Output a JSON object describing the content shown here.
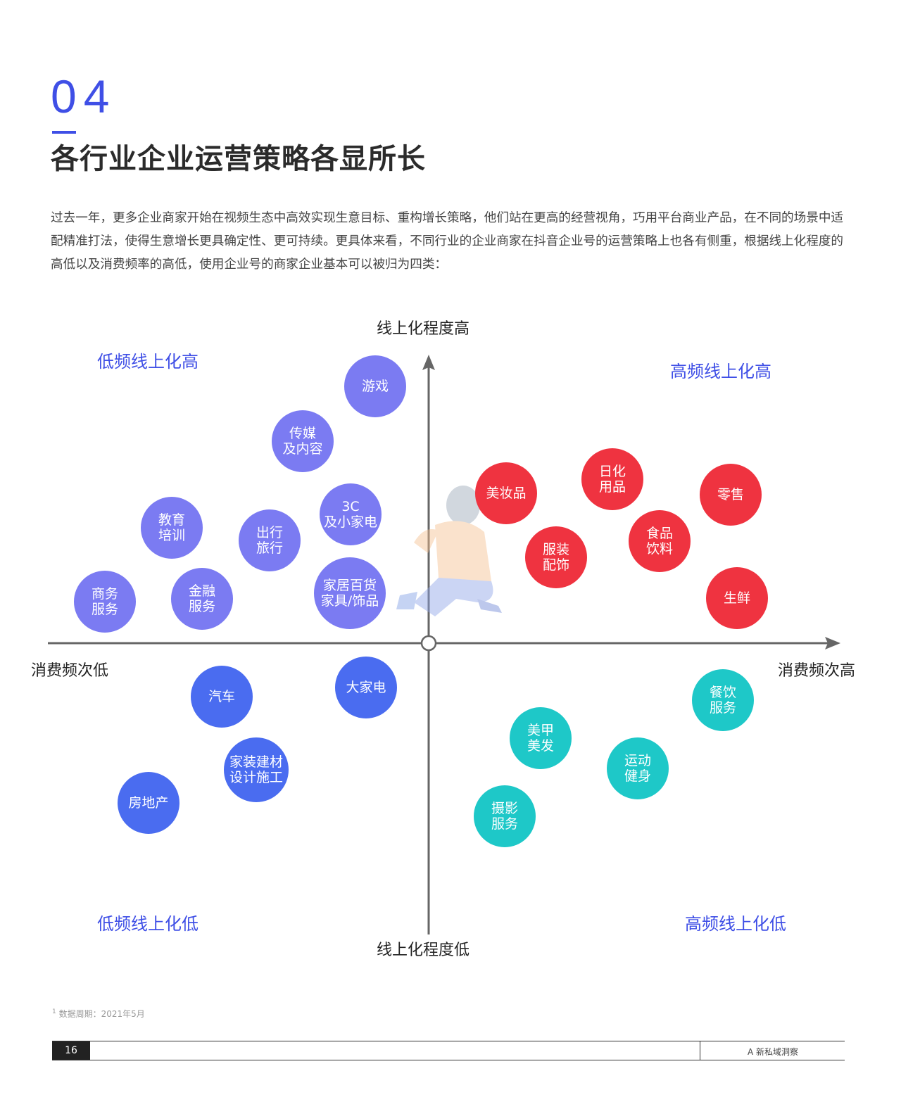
{
  "header": {
    "section_number": "04",
    "title": "各行业企业运营策略各显所长"
  },
  "intro": "过去一年，更多企业商家开始在视频生态中高效实现生意目标、重构增长策略，他们站在更高的经营视角，巧用平台商业产品，在不同的场景中适配精准打法，使得生意增长更具确定性、更可持续。更具体来看，不同行业的企业商家在抖音企业号的运营策略上也各有侧重，根据线上化程度的高低以及消费频率的高低，使用企业号的商家企业基本可以被归为四类：",
  "diagram": {
    "axes": {
      "y_top": "线上化程度高",
      "y_bottom": "线上化程度低",
      "x_left": "消费频次低",
      "x_right": "消费频次高"
    },
    "quadrants": {
      "top_left": "低频线上化高",
      "top_right": "高频线上化高",
      "bottom_left": "低频线上化低",
      "bottom_right": "高频线上化低"
    },
    "colors": {
      "top_left": "#7b7bf2",
      "top_right": "#ef3340",
      "bottom_left": "#4a6cf0",
      "bottom_right": "#1ec8c8",
      "accent": "#3f4fe6"
    },
    "industries": {
      "game": "游戏",
      "media": "传媒\n及内容",
      "electronics_3c": "3C\n及小家电",
      "education": "教育\n培训",
      "travel": "出行\n旅行",
      "business_services": "商务\n服务",
      "finance": "金融\n服务",
      "home_goods": "家居百货\n家具/饰品",
      "cosmetics": "美妆品",
      "daily_goods": "日化\n用品",
      "retail": "零售",
      "apparel": "服装\n配饰",
      "food_beverage": "食品\n饮料",
      "fresh_food": "生鲜",
      "appliances": "大家电",
      "auto": "汽车",
      "home_improvement": "家装建材\n设计施工",
      "real_estate": "房地产",
      "catering": "餐饮\n服务",
      "beauty_salon": "美甲\n美发",
      "fitness": "运动\n健身",
      "photography": "摄影\n服务"
    }
  },
  "footnote": {
    "marker": "1",
    "text": "数据周期：2021年5月"
  },
  "footer": {
    "page_number": "16",
    "brand": "A 新私域洞察"
  }
}
